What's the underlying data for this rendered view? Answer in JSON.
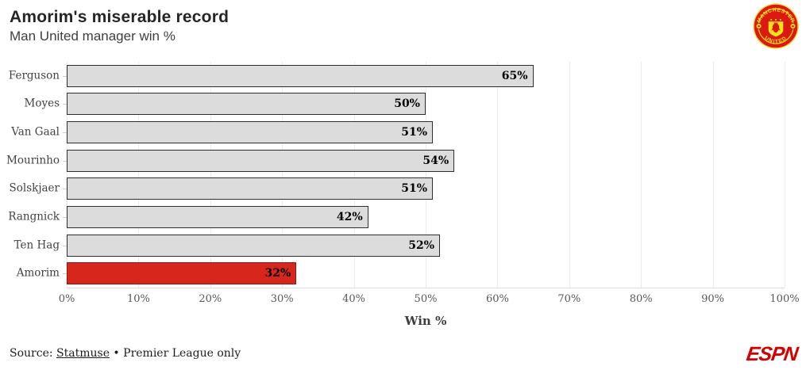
{
  "header": {
    "title": "Amorim's miserable record",
    "subtitle": "Man United manager win %"
  },
  "crest": {
    "icon": "manchester-united-crest-icon",
    "text_top": "MANCHESTER",
    "text_bottom": "UNITED",
    "red": "#da1a12",
    "gold": "#ffe11a"
  },
  "chart_data": {
    "type": "bar",
    "orientation": "horizontal",
    "categories": [
      "Ferguson",
      "Moyes",
      "Van Gaal",
      "Mourinho",
      "Solskjaer",
      "Rangnick",
      "Ten Hag",
      "Amorim"
    ],
    "values": [
      65,
      50,
      51,
      54,
      51,
      42,
      52,
      32
    ],
    "value_labels": [
      "65%",
      "50%",
      "51%",
      "54%",
      "51%",
      "42%",
      "52%",
      "32%"
    ],
    "title": "Amorim's miserable record",
    "subtitle": "Man United manager win %",
    "xlabel": "Win %",
    "ylabel": "",
    "xlim": [
      0,
      100
    ],
    "x_ticks": [
      "0%",
      "10%",
      "20%",
      "30%",
      "40%",
      "50%",
      "60%",
      "70%",
      "80%",
      "90%",
      "100%"
    ],
    "x_tick_values": [
      0,
      10,
      20,
      30,
      40,
      50,
      60,
      70,
      80,
      90,
      100
    ],
    "grid": true,
    "legend": false,
    "highlight_category": "Amorim",
    "bar_color": "#dcdcdc",
    "bar_border_color": "#2e2e2e",
    "highlight_color": "#d7271d",
    "highlight_border_color": "#8c1a12"
  },
  "footer": {
    "source_prefix": "Source: ",
    "source_link": "Statmuse",
    "source_suffix": " • Premier League only",
    "brand": "ESPN"
  }
}
